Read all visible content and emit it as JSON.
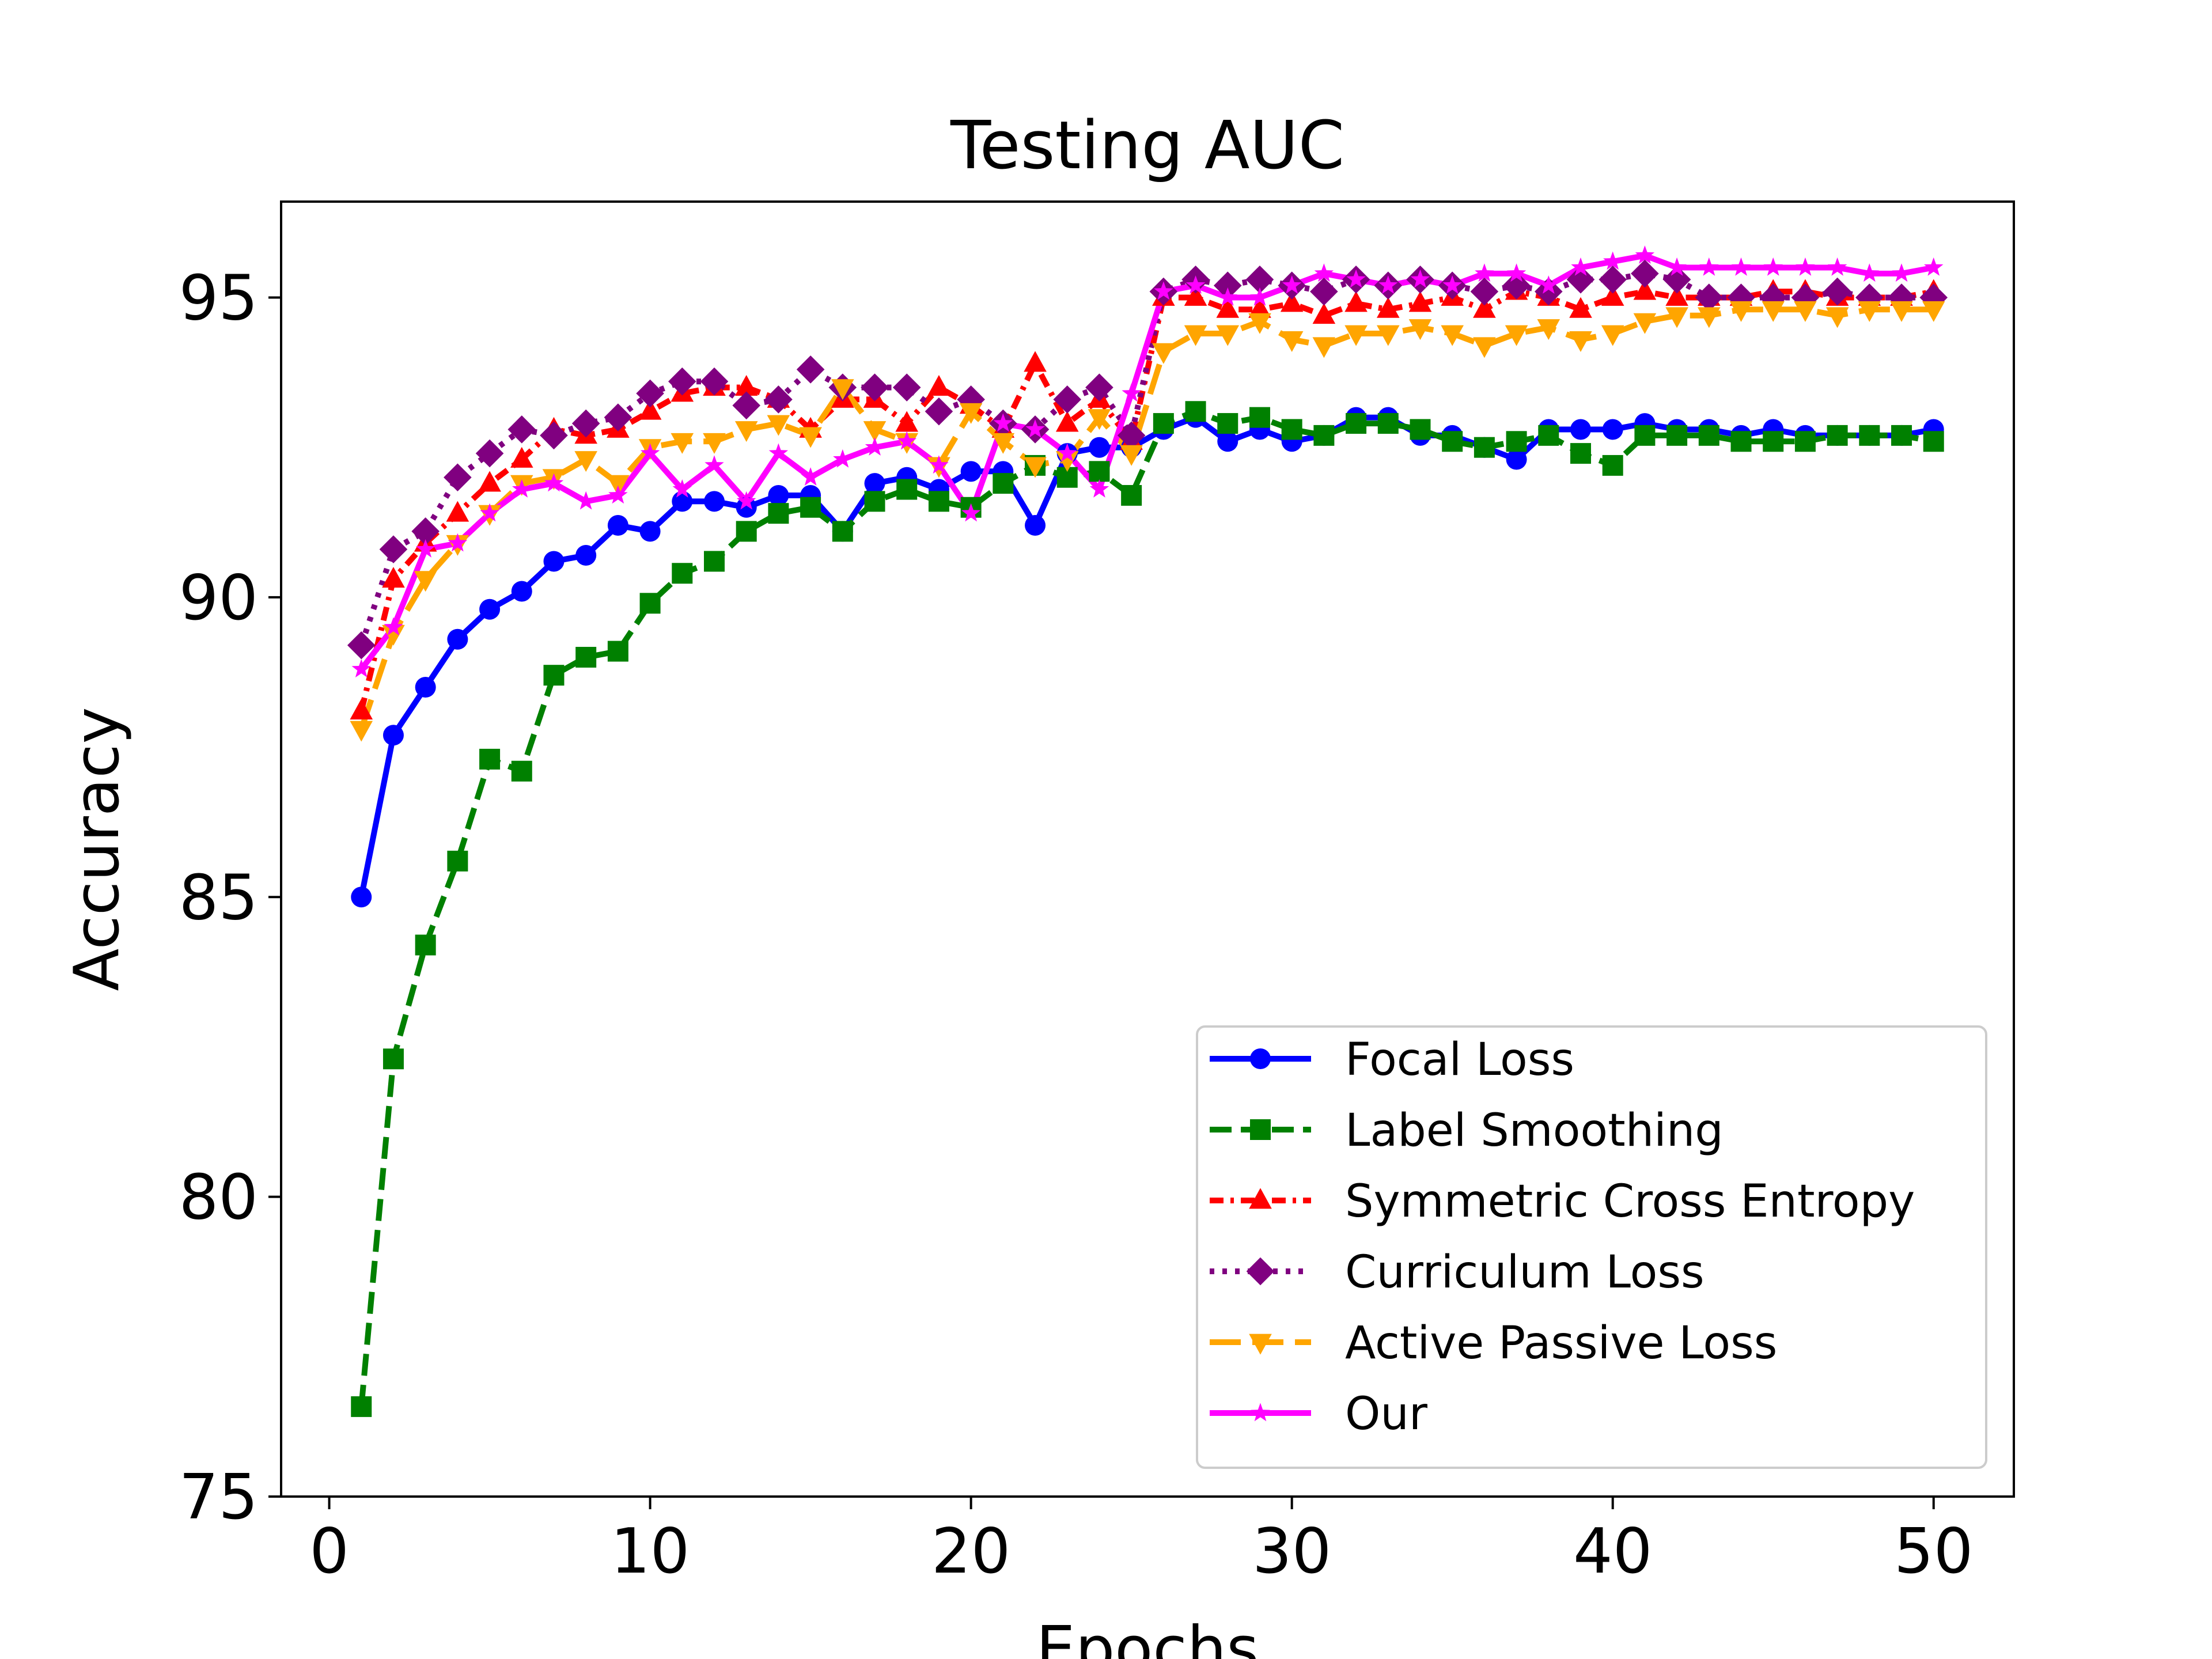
{
  "chart_data": {
    "type": "line",
    "title": "Testing AUC",
    "xlabel": "Epochs",
    "ylabel": "Accuracy",
    "xlim": [
      -1.5,
      52.5
    ],
    "ylim": [
      75,
      96.6
    ],
    "xticks": [
      0,
      10,
      20,
      30,
      40,
      50
    ],
    "yticks": [
      75,
      80,
      85,
      90,
      95
    ],
    "grid": false,
    "legend_position": "lower-right",
    "x": [
      1,
      2,
      3,
      4,
      5,
      6,
      7,
      8,
      9,
      10,
      11,
      12,
      13,
      14,
      15,
      16,
      17,
      18,
      19,
      20,
      21,
      22,
      23,
      24,
      25,
      26,
      27,
      28,
      29,
      30,
      31,
      32,
      33,
      34,
      35,
      36,
      37,
      38,
      39,
      40,
      41,
      42,
      43,
      44,
      45,
      46,
      47,
      48,
      49,
      50
    ],
    "series": [
      {
        "name": "Focal Loss",
        "color": "#0000ff",
        "dash": "solid",
        "marker": "circle",
        "values": [
          85.0,
          87.7,
          88.5,
          89.3,
          89.8,
          90.1,
          90.6,
          90.7,
          91.2,
          91.1,
          91.6,
          91.6,
          91.5,
          91.7,
          91.7,
          91.1,
          91.9,
          92.0,
          91.8,
          92.1,
          92.1,
          91.2,
          92.4,
          92.5,
          92.5,
          92.8,
          93.0,
          92.6,
          92.8,
          92.6,
          92.7,
          93.0,
          93.0,
          92.7,
          92.7,
          92.5,
          92.3,
          92.8,
          92.8,
          92.8,
          92.9,
          92.8,
          92.8,
          92.7,
          92.8,
          92.7,
          92.7,
          92.7,
          92.7,
          92.8
        ]
      },
      {
        "name": "Label Smoothing",
        "color": "#008000",
        "dash": "dashed",
        "marker": "square",
        "values": [
          76.5,
          82.3,
          84.2,
          85.6,
          87.3,
          87.1,
          88.7,
          89.0,
          89.1,
          89.9,
          90.4,
          90.6,
          91.1,
          91.4,
          91.5,
          91.1,
          91.6,
          91.8,
          91.6,
          91.5,
          91.9,
          92.2,
          92.0,
          92.1,
          91.7,
          92.9,
          93.1,
          92.9,
          93.0,
          92.8,
          92.7,
          92.9,
          92.9,
          92.8,
          92.6,
          92.5,
          92.6,
          92.7,
          92.4,
          92.2,
          92.7,
          92.7,
          92.7,
          92.6,
          92.6,
          92.6,
          92.7,
          92.7,
          92.7,
          92.6
        ]
      },
      {
        "name": "Symmetric Cross Entropy",
        "color": "#ff0000",
        "dash": "dashdot",
        "marker": "triangle-up",
        "values": [
          88.1,
          90.3,
          90.9,
          91.4,
          91.9,
          92.3,
          92.8,
          92.7,
          92.8,
          93.1,
          93.4,
          93.5,
          93.5,
          93.3,
          92.8,
          93.3,
          93.3,
          92.9,
          93.5,
          93.2,
          92.8,
          93.9,
          92.9,
          93.3,
          92.6,
          95.0,
          95.0,
          94.8,
          94.8,
          94.9,
          94.7,
          94.9,
          94.8,
          94.9,
          95.0,
          94.8,
          95.1,
          95.0,
          94.8,
          95.0,
          95.1,
          95.0,
          95.0,
          95.0,
          95.1,
          95.1,
          95.0,
          95.0,
          95.0,
          95.1
        ]
      },
      {
        "name": "Curriculum Loss",
        "color": "#800080",
        "dash": "dotted",
        "marker": "diamond",
        "values": [
          89.2,
          90.8,
          91.1,
          92.0,
          92.4,
          92.8,
          92.7,
          92.9,
          93.0,
          93.4,
          93.6,
          93.6,
          93.2,
          93.3,
          93.8,
          93.5,
          93.5,
          93.5,
          93.1,
          93.3,
          92.9,
          92.8,
          93.3,
          93.5,
          92.7,
          95.1,
          95.3,
          95.2,
          95.3,
          95.2,
          95.1,
          95.3,
          95.2,
          95.3,
          95.2,
          95.1,
          95.2,
          95.1,
          95.3,
          95.3,
          95.4,
          95.3,
          95.0,
          95.0,
          95.0,
          95.0,
          95.1,
          95.0,
          95.0,
          95.0
        ]
      },
      {
        "name": "Active Passive Loss",
        "color": "#ffa500",
        "dash": "longdash",
        "marker": "triangle-down",
        "values": [
          87.8,
          89.4,
          90.3,
          90.9,
          91.4,
          91.9,
          92.0,
          92.3,
          91.9,
          92.5,
          92.6,
          92.6,
          92.8,
          92.9,
          92.7,
          93.5,
          92.8,
          92.6,
          92.2,
          93.1,
          92.6,
          92.2,
          92.3,
          93.0,
          92.4,
          94.1,
          94.4,
          94.4,
          94.6,
          94.3,
          94.2,
          94.4,
          94.4,
          94.5,
          94.4,
          94.2,
          94.4,
          94.5,
          94.3,
          94.4,
          94.6,
          94.7,
          94.7,
          94.8,
          94.8,
          94.8,
          94.7,
          94.8,
          94.8,
          94.8
        ]
      },
      {
        "name": "Our",
        "color": "#ff00ff",
        "dash": "solid",
        "marker": "star",
        "values": [
          88.8,
          89.5,
          90.8,
          90.9,
          91.4,
          91.8,
          91.9,
          91.6,
          91.7,
          92.4,
          91.8,
          92.2,
          91.6,
          92.4,
          92.0,
          92.3,
          92.5,
          92.6,
          92.2,
          91.4,
          92.9,
          92.8,
          92.4,
          91.8,
          93.4,
          95.1,
          95.2,
          95.0,
          95.0,
          95.2,
          95.4,
          95.3,
          95.2,
          95.3,
          95.2,
          95.4,
          95.4,
          95.2,
          95.5,
          95.6,
          95.7,
          95.5,
          95.5,
          95.5,
          95.5,
          95.5,
          95.5,
          95.4,
          95.4,
          95.5
        ]
      }
    ]
  }
}
